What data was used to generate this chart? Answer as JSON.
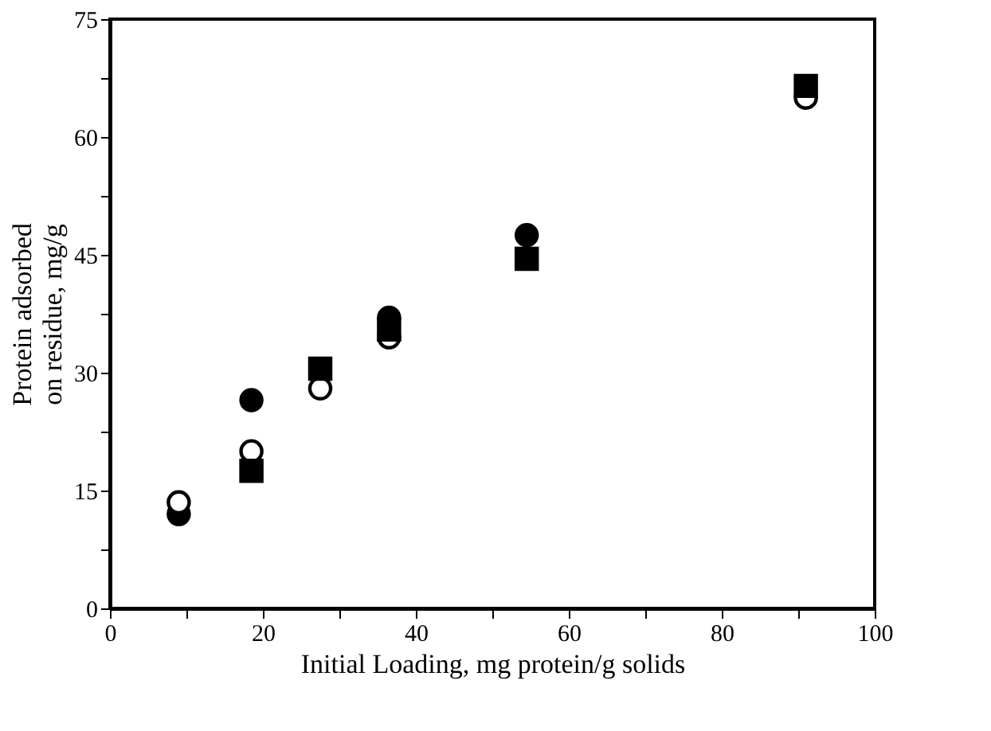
{
  "chart_data": {
    "type": "scatter",
    "xlabel": "Initial Loading, mg protein/g solids",
    "ylabel": "Protein adsorbed\non residue, mg/g",
    "x": [
      9,
      18.5,
      27.5,
      36.5,
      54.5,
      91
    ],
    "series": [
      {
        "color": "#000000",
        "marker": "circle",
        "values": [
          12,
          26.5,
          null,
          37,
          47.5,
          null
        ]
      },
      {
        "color": "#ffffff",
        "marker": "circle",
        "values": [
          13.5,
          20,
          28,
          34.5,
          null,
          65
        ]
      },
      {
        "color": "#000000",
        "marker": "square",
        "values": [
          null,
          17.5,
          30.5,
          35.5,
          44.5,
          66.5
        ]
      }
    ],
    "xlim": [
      0,
      100
    ],
    "xticks": [
      0,
      {
        "value": 10,
        "label": null
      },
      20,
      {
        "value": 30,
        "label": null
      },
      40,
      {
        "value": 50,
        "label": null
      },
      60,
      {
        "value": 70,
        "label": null
      },
      80,
      {
        "value": 90,
        "label": null
      },
      100
    ],
    "ylim": [
      0,
      75
    ],
    "yticks": [
      0,
      {
        "value": 7.5,
        "label": null
      },
      15,
      {
        "value": 22.5,
        "label": null
      },
      30,
      {
        "value": 37.5,
        "label": null
      },
      45,
      {
        "value": 52.5,
        "label": null
      },
      60,
      {
        "value": 67.5,
        "label": null
      },
      75
    ],
    "grid": false
  }
}
